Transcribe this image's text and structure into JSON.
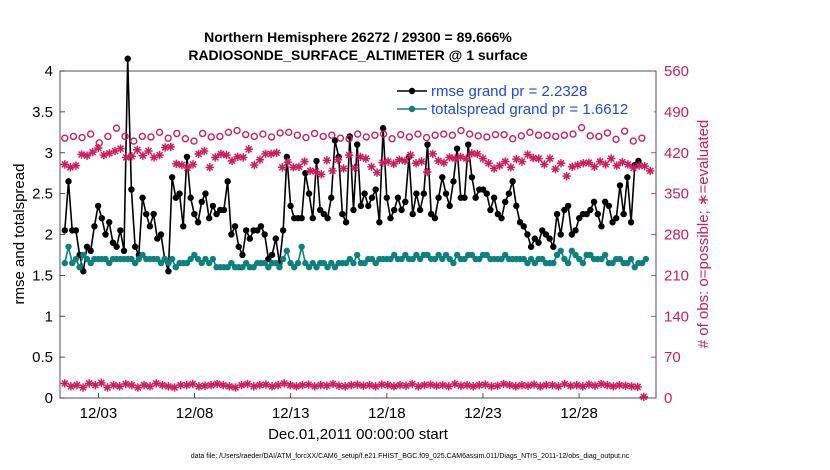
{
  "title_line1": "Northern Hemisphere 26272 / 29300 = 89.666%",
  "title_line2": "RADIOSONDE_SURFACE_ALTIMETER @ 1 surface",
  "footer": "data file: /Users/raeder/DAI/ATM_forcXX/CAM6_setup/f.e21.FHIST_BGC.f09_025.CAM6assim.011/Diags_NTrS_2011-12/obs_diag_output.nc",
  "colors": {
    "rmse": "#000000",
    "spread": "#0d8080",
    "obs": "#cc1d61",
    "legend_text": "#1d4cdb"
  },
  "chart_data": {
    "type": "line",
    "xlabel": "Dec.01,2011 00:00:00 start",
    "ylabel": "rmse and totalspread",
    "y2label": "# of obs: o=possible; ∗=evaluated",
    "xlim": [
      0,
      31
    ],
    "ylim": [
      0,
      4
    ],
    "y2lim": [
      0,
      560
    ],
    "x_ticks": [
      2,
      7,
      12,
      17,
      22,
      27
    ],
    "x_tick_labels": [
      "12/03",
      "12/08",
      "12/13",
      "12/18",
      "12/23",
      "12/28"
    ],
    "y_ticks": [
      "0",
      "0.5",
      "1",
      "1.5",
      "2",
      "2.5",
      "3",
      "3.5",
      "4"
    ],
    "y2_ticks": [
      "0",
      "70",
      "140",
      "210",
      "280",
      "350",
      "420",
      "490",
      "560"
    ],
    "grid": false,
    "legend_position": "top-right",
    "legend": [
      "rmse grand pr = 2.2328",
      "totalspread grand pr = 1.6612"
    ],
    "series": [
      {
        "name": "rmse grand pr = 2.2328",
        "axis": "left",
        "marker": "filled-dot",
        "values": [
          2.05,
          2.65,
          2.05,
          2.05,
          1.75,
          1.55,
          1.85,
          1.8,
          2.1,
          2.35,
          2.2,
          2.0,
          2.15,
          1.9,
          1.85,
          2.05,
          1.8,
          4.15,
          2.55,
          1.85,
          1.75,
          2.45,
          2.25,
          2.1,
          2.25,
          1.95,
          2.0,
          1.7,
          1.55,
          2.7,
          2.45,
          2.5,
          2.1,
          2.95,
          2.45,
          2.25,
          2.15,
          2.4,
          2.5,
          2.2,
          2.35,
          2.25,
          2.3,
          2.3,
          2.65,
          2.0,
          2.1,
          1.85,
          1.75,
          2.05,
          1.95,
          2.05,
          2.05,
          2.1,
          2.0,
          1.7,
          1.75,
          1.95,
          1.65,
          2.05,
          2.95,
          2.35,
          2.2,
          2.2,
          2.2,
          2.75,
          2.5,
          2.2,
          2.9,
          2.3,
          2.25,
          2.2,
          2.45,
          3.15,
          2.95,
          2.25,
          2.15,
          3.2,
          2.3,
          3.1,
          2.35,
          2.5,
          2.35,
          2.45,
          2.55,
          2.15,
          3.3,
          2.45,
          2.2,
          2.3,
          2.45,
          2.3,
          2.4,
          2.95,
          2.25,
          2.5,
          2.3,
          2.5,
          3.1,
          2.25,
          2.2,
          2.45,
          2.7,
          2.5,
          2.35,
          2.65,
          3.05,
          2.45,
          2.45,
          3.1,
          2.7,
          2.45,
          2.55,
          2.55,
          2.5,
          2.3,
          2.45,
          2.25,
          2.2,
          2.4,
          2.5,
          2.65,
          2.35,
          2.15,
          2.1,
          2.0,
          1.85,
          1.95,
          1.9,
          2.05,
          2.0,
          1.95,
          1.85,
          2.25,
          2.0,
          2.3,
          2.35,
          2.0,
          2.05,
          2.2,
          2.25,
          2.25,
          2.3,
          2.4,
          2.25,
          2.1,
          2.4,
          2.35,
          2.15,
          2.2,
          2.6,
          2.25,
          2.7,
          2.15,
          2.85,
          2.9
        ],
        "first_x": 0.25,
        "dx": 0.1925
      },
      {
        "name": "totalspread grand pr = 1.6612",
        "axis": "left",
        "marker": "filled-dot",
        "values": [
          1.65,
          1.85,
          1.65,
          1.7,
          1.6,
          1.75,
          1.7,
          1.65,
          1.7,
          1.7,
          1.7,
          1.7,
          1.65,
          1.7,
          1.7,
          1.7,
          1.7,
          1.7,
          1.7,
          1.65,
          1.7,
          1.75,
          1.7,
          1.7,
          1.7,
          1.7,
          1.65,
          1.7,
          1.65,
          1.7,
          1.6,
          1.65,
          1.65,
          1.65,
          1.7,
          1.75,
          1.7,
          1.65,
          1.7,
          1.65,
          1.7,
          1.6,
          1.6,
          1.6,
          1.6,
          1.65,
          1.6,
          1.6,
          1.6,
          1.65,
          1.6,
          1.6,
          1.65,
          1.65,
          1.65,
          1.6,
          1.65,
          1.65,
          1.6,
          1.7,
          1.8,
          1.65,
          1.6,
          1.65,
          1.85,
          1.65,
          1.6,
          1.65,
          1.6,
          1.65,
          1.65,
          1.6,
          1.65,
          1.6,
          1.65,
          1.65,
          1.65,
          1.7,
          1.65,
          1.75,
          1.65,
          1.65,
          1.7,
          1.7,
          1.65,
          1.7,
          1.7,
          1.7,
          1.7,
          1.75,
          1.7,
          1.7,
          1.75,
          1.7,
          1.7,
          1.75,
          1.7,
          1.75,
          1.75,
          1.7,
          1.7,
          1.75,
          1.7,
          1.75,
          1.7,
          1.65,
          1.75,
          1.7,
          1.7,
          1.75,
          1.75,
          1.7,
          1.7,
          1.75,
          1.75,
          1.7,
          1.7,
          1.7,
          1.7,
          1.75,
          1.7,
          1.7,
          1.7,
          1.7,
          1.7,
          1.65,
          1.7,
          1.65,
          1.7,
          1.7,
          1.65,
          1.65,
          1.65,
          1.75,
          1.8,
          1.7,
          1.65,
          1.8,
          1.75,
          1.7,
          1.65,
          1.75,
          1.75,
          1.7,
          1.7,
          1.7,
          1.75,
          1.65,
          1.65,
          1.7,
          1.7,
          1.65,
          1.65,
          1.7,
          1.6,
          1.65,
          1.65,
          1.7
        ],
        "first_x": 0.25,
        "dx": 0.1925
      },
      {
        "name": "",
        "role": "obs possible",
        "axis": "right",
        "marker": "open-circle",
        "values": [
          445,
          448,
          446,
          452,
          437,
          448,
          462,
          448,
          440,
          448,
          447,
          455,
          445,
          453,
          444,
          440,
          453,
          447,
          448,
          455,
          458,
          451,
          448,
          452,
          447,
          454,
          455,
          450,
          446,
          453,
          448,
          450,
          445,
          444,
          452,
          447,
          450,
          452,
          444,
          451,
          447,
          452,
          446,
          450,
          452,
          450,
          458,
          452,
          449,
          447,
          451,
          451,
          444,
          449,
          455,
          450,
          450,
          448,
          450,
          452,
          463,
          449,
          448,
          454,
          443,
          457,
          440,
          445
        ],
        "first_x": 0.25,
        "dx": 0.448
      },
      {
        "name": "",
        "role": "obs evaluated",
        "axis": "right",
        "marker": "asterisk",
        "values": [
          400,
          395,
          398,
          417,
          415,
          421,
          428,
          416,
          419,
          423,
          427,
          412,
          414,
          425,
          415,
          423,
          412,
          416,
          429,
          430,
          401,
          399,
          394,
          400,
          418,
          423,
          395,
          412,
          418,
          416,
          406,
          413,
          412,
          426,
          399,
          408,
          418,
          418,
          420,
          395,
          404,
          395,
          396,
          405,
          389,
          388,
          383,
          407,
          389,
          408,
          393,
          416,
          394,
          413,
          410,
          396,
          386,
          403,
          405,
          401,
          408,
          406,
          416,
          402,
          405,
          387,
          418,
          406,
          403,
          412,
          410,
          413,
          410,
          419,
          418,
          410,
          402,
          393,
          398,
          405,
          395,
          409,
          405,
          417,
          411,
          410,
          400,
          410,
          392,
          402,
          380,
          396,
          399,
          402,
          403,
          396,
          405,
          400,
          410,
          398,
          404,
          400,
          394,
          398,
          397,
          389
        ],
        "first_x": 0.25,
        "dx": 0.29
      },
      {
        "name": "",
        "role": "obs per-hour low",
        "axis": "right",
        "marker": "asterisk",
        "values": [
          25,
          20,
          22,
          18,
          25,
          22,
          26,
          18,
          22,
          20,
          24,
          22,
          18,
          22,
          20,
          25,
          22,
          20,
          18,
          22,
          22,
          24,
          20,
          21,
          22,
          24,
          22,
          20,
          18,
          22,
          24,
          20,
          22,
          23,
          20,
          22,
          25,
          22,
          20,
          22,
          23,
          20,
          22,
          21,
          24,
          21,
          20,
          22,
          23,
          21,
          22,
          20,
          23,
          22,
          20,
          22,
          21,
          24,
          20,
          22,
          23,
          21,
          22,
          20,
          24,
          21,
          22,
          20,
          22,
          23,
          20,
          21,
          24,
          22,
          20,
          22,
          21,
          23,
          20,
          22,
          22,
          20,
          24,
          21,
          22,
          20,
          23,
          21,
          24,
          22,
          20,
          22,
          21,
          20,
          19,
          2
        ],
        "first_x": 0.25,
        "dx": 0.317
      }
    ]
  }
}
